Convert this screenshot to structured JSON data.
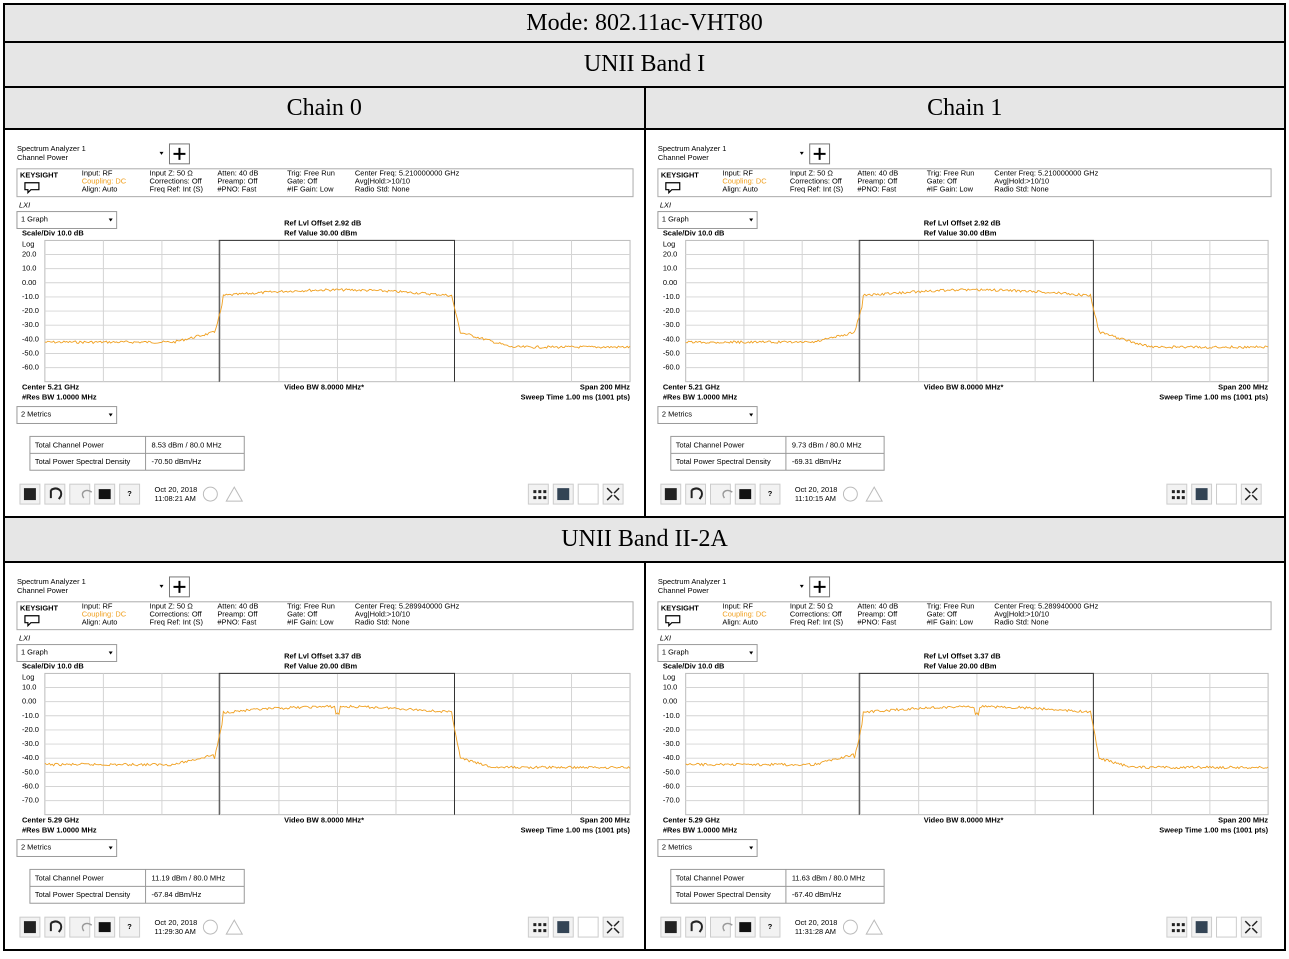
{
  "header": {
    "title": "Mode: 802.11ac-VHT80",
    "columns": [
      "Chain 0",
      "Chain 1"
    ]
  },
  "analyzer": {
    "app": "Spectrum Analyzer 1",
    "measurement": "Channel Power",
    "brand": "KEYSIGHT",
    "lxi": "LXI",
    "info": [
      [
        "Input: RF",
        "Coupling: DC",
        "Align: Auto"
      ],
      [
        "Input Z: 50 Ω",
        "Corrections: Off",
        "Freq Ref: Int (S)"
      ],
      [
        "Atten: 40 dB",
        "Preamp: Off",
        "#PNO: Fast"
      ],
      [
        "Trig: Free Run",
        "Gate: Off",
        "#IF Gain: Low"
      ]
    ],
    "avg": "Avg|Hold:>10/10",
    "radio": "Radio Std: None",
    "graph": "1 Graph",
    "scale": "Scale/Div 10.0 dB",
    "log": "Log",
    "rbw": "#Res BW 1.0000 MHz",
    "vbw": "Video BW 8.0000 MHz*",
    "span": "Span 200 MHz",
    "sweep": "Sweep Time 1.00 ms (1001 pts)",
    "metrics": "2 Metrics",
    "metric_names": [
      "Total Channel Power",
      "Total Power Spectral Density"
    ],
    "date": "Oct 20, 2018"
  },
  "sections": [
    {
      "title": "UNII Band I",
      "panels": [
        {
          "center_freq": "Center Freq: 5.210000000 GHz",
          "ref_offset": "Ref Lvl Offset 2.92 dB",
          "ref_value": "Ref Value 30.00 dBm",
          "y_labels": [
            "20.0",
            "10.0",
            "0.00",
            "-10.0",
            "-20.0",
            "-30.0",
            "-40.0",
            "-50.0",
            "-60.0"
          ],
          "center": "Center 5.21 GHz",
          "channel_power": "8.53 dBm / 80.0 MHz",
          "psd": "-70.50 dBm/Hz",
          "time": "11:08:21 AM"
        },
        {
          "center_freq": "Center Freq: 5.210000000 GHz",
          "ref_offset": "Ref Lvl Offset 2.92 dB",
          "ref_value": "Ref Value 30.00 dBm",
          "y_labels": [
            "20.0",
            "10.0",
            "0.00",
            "-10.0",
            "-20.0",
            "-30.0",
            "-40.0",
            "-50.0",
            "-60.0"
          ],
          "center": "Center 5.21 GHz",
          "channel_power": "9.73 dBm / 80.0 MHz",
          "psd": "-69.31 dBm/Hz",
          "time": "11:10:15 AM"
        }
      ]
    },
    {
      "title": "UNII Band II-2A",
      "panels": [
        {
          "center_freq": "Center Freq: 5.289940000 GHz",
          "ref_offset": "Ref Lvl Offset 3.37 dB",
          "ref_value": "Ref Value 20.00 dBm",
          "y_labels": [
            "10.0",
            "0.00",
            "-10.0",
            "-20.0",
            "-30.0",
            "-40.0",
            "-50.0",
            "-60.0",
            "-70.0"
          ],
          "center": "Center 5.29 GHz",
          "channel_power": "11.19 dBm / 80.0 MHz",
          "psd": "-67.84 dBm/Hz",
          "time": "11:29:30 AM"
        },
        {
          "center_freq": "Center Freq: 5.289940000 GHz",
          "ref_offset": "Ref Lvl Offset 3.37 dB",
          "ref_value": "Ref Value 20.00 dBm",
          "y_labels": [
            "10.0",
            "0.00",
            "-10.0",
            "-20.0",
            "-30.0",
            "-40.0",
            "-50.0",
            "-60.0",
            "-70.0"
          ],
          "center": "Center 5.29 GHz",
          "channel_power": "11.63 dBm / 80.0 MHz",
          "psd": "-67.40 dBm/Hz",
          "time": "11:31:28 AM"
        }
      ]
    }
  ]
}
